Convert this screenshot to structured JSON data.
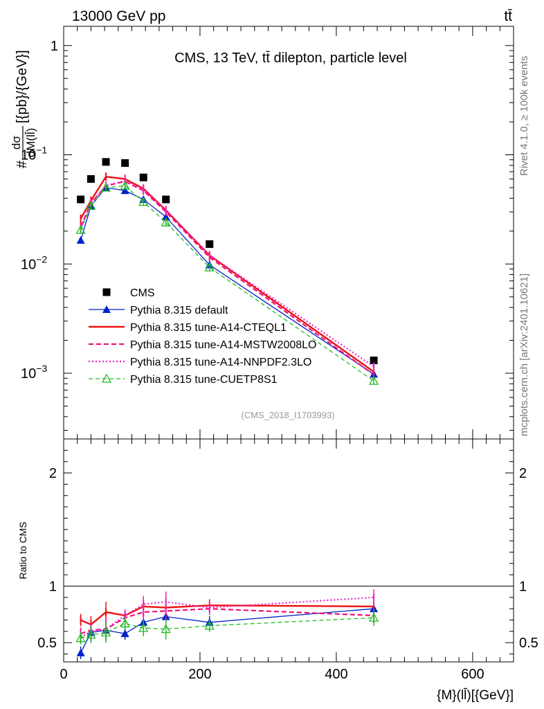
{
  "header": {
    "energy_label": "13000 GeV pp",
    "process_label": "tt̄"
  },
  "side_labels": {
    "rivet": "Rivet 4.1.0, ≥ 100k events",
    "mcplots": "mcplots.cern.ch [arXiv:2401.10621]"
  },
  "chart_data": [
    {
      "type": "line",
      "panel": "main",
      "title": "CMS, 13 TeV, tt̄ dilepton, particle level",
      "analysis_tag": "(CMS_2018_I1703993)",
      "ylabel_numerator": "dσ",
      "ylabel_denominator": "dM(ll̄)",
      "ylabel_prefix": "#",
      "ylabel_suffix": "[{pb}/{GeV}]",
      "yscale": "log",
      "ylim": [
        0.00025,
        1.5
      ],
      "xlim": [
        0,
        660
      ],
      "yticks": [
        {
          "value": 1,
          "base": "1",
          "exp": ""
        },
        {
          "value": 0.1,
          "base": "10",
          "exp": "−1"
        },
        {
          "value": 0.01,
          "base": "10",
          "exp": "−2"
        },
        {
          "value": 0.001,
          "base": "10",
          "exp": "−3"
        }
      ],
      "legend_position": "center-left",
      "x": [
        25,
        40,
        62,
        90,
        117,
        150,
        214,
        455
      ],
      "series": [
        {
          "name": "CMS",
          "style": "data",
          "color": "#000000",
          "values": [
            0.039,
            0.06,
            0.086,
            0.084,
            0.062,
            0.039,
            0.0152,
            0.00131
          ]
        },
        {
          "name": "Pythia 8.315 default",
          "style": "blue",
          "color": "#0022cc",
          "values": [
            0.0165,
            0.034,
            0.05,
            0.047,
            0.039,
            0.027,
            0.0098,
            0.00098
          ]
        },
        {
          "name": "Pythia 8.315 tune-A14-CTEQL1",
          "style": "red",
          "color": "#ee1111",
          "values": [
            0.026,
            0.038,
            0.063,
            0.06,
            0.049,
            0.031,
            0.012,
            0.00103
          ]
        },
        {
          "name": "Pythia 8.315 tune-A14-MSTW2008LO",
          "style": "magenta-dash",
          "color": "#ee1177",
          "values": [
            0.022,
            0.036,
            0.052,
            0.057,
            0.047,
            0.03,
            0.0115,
            0.00097
          ]
        },
        {
          "name": "Pythia 8.315 tune-A14-NNPDF2.3LO",
          "style": "magenta-dot",
          "color": "#ee22cc",
          "values": [
            0.021,
            0.036,
            0.052,
            0.058,
            0.048,
            0.031,
            0.012,
            0.00115
          ]
        },
        {
          "name": "Pythia 8.315 tune-CUETP8S1",
          "style": "green",
          "color": "#22bb22",
          "values": [
            0.0205,
            0.034,
            0.05,
            0.052,
            0.037,
            0.024,
            0.0093,
            0.00085
          ]
        }
      ]
    },
    {
      "type": "line",
      "panel": "ratio",
      "ylabel": "Ratio to CMS",
      "xlabel": "{M}(ll̄)[{GeV}]",
      "yscale": "linear",
      "ylim": [
        0.33,
        2.3
      ],
      "xlim": [
        0,
        660
      ],
      "yticks": [
        0.5,
        1,
        2
      ],
      "xticks": [
        0,
        200,
        400,
        600
      ],
      "reference": 1,
      "x": [
        25,
        40,
        62,
        90,
        117,
        150,
        214,
        455
      ],
      "series": [
        {
          "name": "Pythia 8.315 default",
          "style": "blue",
          "color": "#0022cc",
          "values": [
            0.41,
            0.59,
            0.61,
            0.58,
            0.68,
            0.73,
            0.68,
            0.8
          ]
        },
        {
          "name": "Pythia 8.315 tune-A14-CTEQL1",
          "style": "red",
          "color": "#ee1111",
          "values": [
            0.7,
            0.66,
            0.77,
            0.74,
            0.82,
            0.81,
            0.83,
            0.82
          ]
        },
        {
          "name": "Pythia 8.315 tune-A14-MSTW2008LO",
          "style": "magenta-dash",
          "color": "#ee1177",
          "values": [
            0.58,
            0.61,
            0.62,
            0.72,
            0.77,
            0.78,
            0.8,
            0.74
          ]
        },
        {
          "name": "Pythia 8.315 tune-A14-NNPDF2.3LO",
          "style": "magenta-dot",
          "color": "#ee22cc",
          "values": [
            0.55,
            0.6,
            0.62,
            0.74,
            0.84,
            0.86,
            0.81,
            0.9
          ]
        },
        {
          "name": "Pythia 8.315 tune-CUETP8S1",
          "style": "green",
          "color": "#22bb22",
          "values": [
            0.54,
            0.57,
            0.59,
            0.67,
            0.63,
            0.62,
            0.65,
            0.72
          ]
        }
      ]
    }
  ]
}
